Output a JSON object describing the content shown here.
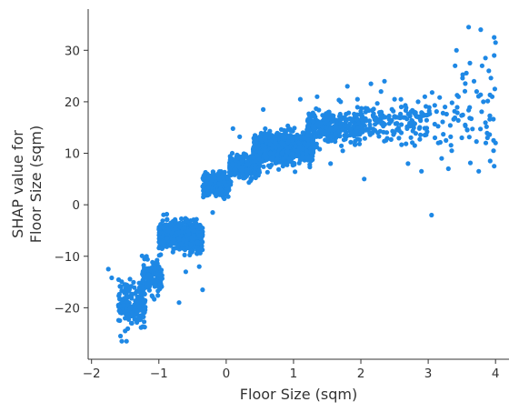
{
  "chart_data": {
    "type": "scatter",
    "title": "",
    "xlabel": "Floor Size (sqm)",
    "ylabel_line1": "SHAP value for",
    "ylabel_line2": "Floor Size (sqm)",
    "xlim": [
      -2.05,
      4.2
    ],
    "ylim": [
      -30,
      38
    ],
    "xticks": [
      -2,
      -1,
      0,
      1,
      2,
      3,
      4
    ],
    "xtick_labels": [
      "−2",
      "−1",
      "0",
      "1",
      "2",
      "3",
      "4"
    ],
    "yticks": [
      -20,
      -10,
      0,
      10,
      20,
      30
    ],
    "ytick_labels": [
      "−20",
      "−10",
      "0",
      "10",
      "20",
      "30"
    ],
    "grid": false,
    "point_color": "#1E88E5",
    "clusters": [
      {
        "x_range": [
          -1.6,
          -1.2
        ],
        "y_center": -19,
        "y_spread": 3.5,
        "count": 170
      },
      {
        "x_range": [
          -1.25,
          -0.95
        ],
        "y_center": -14,
        "y_spread": 2.5,
        "count": 160
      },
      {
        "x_range": [
          -1.0,
          -0.35
        ],
        "y_center": -6,
        "y_spread": 2.2,
        "count": 700
      },
      {
        "x_range": [
          -0.35,
          0.05
        ],
        "y_center": 4,
        "y_spread": 1.8,
        "count": 300
      },
      {
        "x_range": [
          0.05,
          0.5
        ],
        "y_center": 7.5,
        "y_spread": 1.8,
        "count": 300
      },
      {
        "x_range": [
          0.4,
          1.3
        ],
        "y_center": 11,
        "y_spread": 2.3,
        "count": 1000
      },
      {
        "x_range": [
          1.2,
          2.0
        ],
        "y_center": 15,
        "y_spread": 2.5,
        "count": 300
      },
      {
        "x_range": [
          2.0,
          3.0
        ],
        "y_center": 16,
        "y_spread": 3.0,
        "count": 150
      },
      {
        "x_range": [
          3.0,
          4.0
        ],
        "y_center": 17,
        "y_spread": 6.0,
        "count": 60
      }
    ],
    "points": [
      [
        -1.75,
        -12.5
      ],
      [
        -1.7,
        -14.2
      ],
      [
        -1.6,
        -19.5
      ],
      [
        -1.58,
        -22.5
      ],
      [
        -1.57,
        -25.5
      ],
      [
        -1.55,
        -26.5
      ],
      [
        -1.5,
        -24.5
      ],
      [
        -1.48,
        -26.5
      ],
      [
        -1.45,
        -21.5
      ],
      [
        -1.4,
        -23
      ],
      [
        -0.7,
        -19
      ],
      [
        -0.35,
        -16.5
      ],
      [
        -0.6,
        -13
      ],
      [
        -0.4,
        -12
      ],
      [
        -0.2,
        -1.5
      ],
      [
        0.1,
        14.8
      ],
      [
        0.2,
        13.2
      ],
      [
        0.55,
        18.5
      ],
      [
        1.1,
        20.5
      ],
      [
        1.35,
        21
      ],
      [
        1.55,
        8
      ],
      [
        1.7,
        20
      ],
      [
        1.8,
        23
      ],
      [
        1.95,
        20.5
      ],
      [
        2.05,
        5
      ],
      [
        2.15,
        23.5
      ],
      [
        2.3,
        22
      ],
      [
        2.35,
        24
      ],
      [
        2.5,
        20.5
      ],
      [
        2.6,
        19
      ],
      [
        2.7,
        8
      ],
      [
        2.8,
        11.5
      ],
      [
        2.85,
        20
      ],
      [
        2.9,
        6.5
      ],
      [
        2.95,
        21
      ],
      [
        3.05,
        -2
      ],
      [
        3.1,
        13
      ],
      [
        3.15,
        12
      ],
      [
        3.2,
        9
      ],
      [
        3.25,
        19
      ],
      [
        3.3,
        7
      ],
      [
        3.35,
        10.5
      ],
      [
        3.4,
        27
      ],
      [
        3.42,
        30
      ],
      [
        3.45,
        21
      ],
      [
        3.5,
        13
      ],
      [
        3.55,
        15.5
      ],
      [
        3.6,
        34.5
      ],
      [
        3.62,
        27.5
      ],
      [
        3.68,
        24
      ],
      [
        3.72,
        22
      ],
      [
        3.75,
        6.5
      ],
      [
        3.78,
        34
      ],
      [
        3.8,
        27
      ],
      [
        3.82,
        20
      ],
      [
        3.85,
        28.5
      ],
      [
        3.88,
        13
      ],
      [
        3.9,
        26
      ],
      [
        3.92,
        8.5
      ],
      [
        3.95,
        21
      ],
      [
        3.97,
        12.5
      ],
      [
        3.98,
        32.5
      ],
      [
        4.0,
        31.5
      ],
      [
        3.98,
        29
      ],
      [
        3.99,
        22.5
      ],
      [
        3.98,
        7.5
      ],
      [
        3.97,
        10.5
      ],
      [
        4.0,
        12
      ]
    ]
  }
}
